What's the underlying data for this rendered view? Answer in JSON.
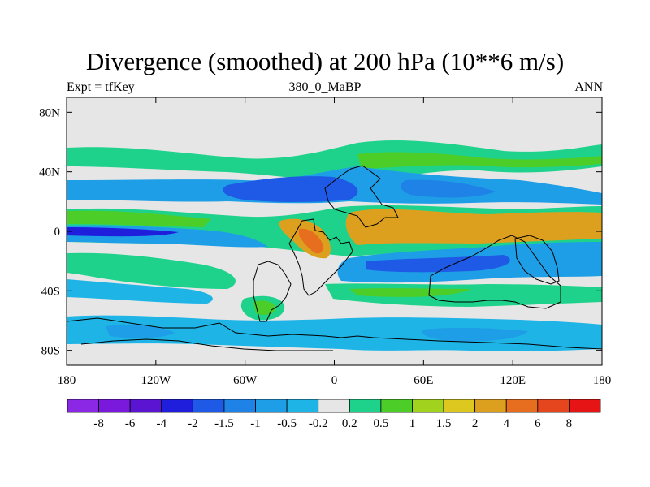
{
  "header": {
    "title": "Divergence (smoothed) at 200 hPa (10**6 m/s)",
    "left_label": "Expt = tfKey",
    "center_label": "380_0_MaBP",
    "right_label": "ANN"
  },
  "map": {
    "lat_ticks": [
      {
        "value": 80,
        "label": "80N"
      },
      {
        "value": 40,
        "label": "40N"
      },
      {
        "value": 0,
        "label": "0"
      },
      {
        "value": -40,
        "label": "40S"
      },
      {
        "value": -80,
        "label": "80S"
      }
    ],
    "lon_ticks": [
      {
        "value": -180,
        "label": "180"
      },
      {
        "value": -120,
        "label": "120W"
      },
      {
        "value": -60,
        "label": "60W"
      },
      {
        "value": 0,
        "label": "0"
      },
      {
        "value": 60,
        "label": "60E"
      },
      {
        "value": 120,
        "label": "120E"
      },
      {
        "value": 180,
        "label": "180"
      }
    ],
    "lon_range": [
      -180,
      180
    ],
    "lat_range": [
      -90,
      90
    ],
    "background_color": "#e6e6e6"
  },
  "colorbar": {
    "colors": [
      "#8a28e6",
      "#7a18dc",
      "#5a14d2",
      "#1e1edc",
      "#1e5ae6",
      "#1e82e6",
      "#1e9ee6",
      "#1eb4e6",
      "#e6e6e6",
      "#1ed28c",
      "#4ccd28",
      "#a0d21e",
      "#dcc81e",
      "#dca01e",
      "#e66e1e",
      "#e6461e",
      "#e61414"
    ],
    "labels": [
      "-8",
      "-6",
      "-4",
      "-2",
      "-1.5",
      "-1",
      "-0.5",
      "-0.2",
      "0.2",
      "0.5",
      "1",
      "1.5",
      "2",
      "4",
      "6",
      "8"
    ]
  },
  "field_colors": {
    "neutral": "#e6e6e6",
    "weak_pos": "#1ed28c",
    "pos": "#4ccd28",
    "mid_pos": "#a0d21e",
    "strong_pos": "#dca01e",
    "very_strong_pos": "#e66e1e",
    "weak_neg": "#1eb4e6",
    "neg": "#1e9ee6",
    "mid_neg": "#1e82e6",
    "strong_neg": "#1e5ae6",
    "very_strong_neg": "#1e1edc"
  }
}
